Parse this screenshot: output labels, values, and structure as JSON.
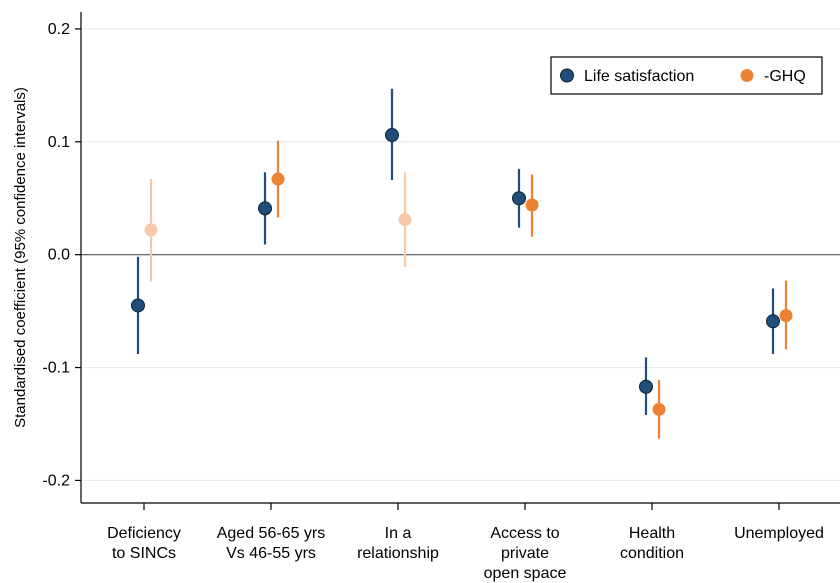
{
  "chart_data": {
    "type": "scatter",
    "subtype": "coefficient-plot",
    "title": "",
    "xlabel": "",
    "ylabel": "Standardised coefficient (95% confidence intervals)",
    "ylim": [
      -0.22,
      0.215
    ],
    "yticks": [
      0.2,
      0.1,
      0.0,
      -0.1,
      -0.2
    ],
    "ytick_labels": [
      "0.2",
      "0.1",
      "0.0",
      "-0.1",
      "-0.2"
    ],
    "grid": true,
    "zero_line": true,
    "legend_position": "top-right",
    "categories": [
      [
        "Deficiency",
        "to SINCs"
      ],
      [
        "Aged 56-65 yrs",
        "Vs 46-55 yrs"
      ],
      [
        "In a",
        "relationship"
      ],
      [
        "Access to",
        "private",
        "open space"
      ],
      [
        "Health",
        "condition"
      ],
      [
        "Unemployed"
      ]
    ],
    "series": [
      {
        "name": "Life satisfaction",
        "color": "#1f4e79",
        "faded_color": "#1f4e79",
        "estimates": [
          -0.045,
          0.041,
          0.106,
          0.05,
          -0.117,
          -0.059
        ],
        "ci_low": [
          -0.088,
          0.009,
          0.066,
          0.024,
          -0.142,
          -0.088
        ],
        "ci_high": [
          -0.002,
          0.073,
          0.147,
          0.076,
          -0.091,
          -0.03
        ],
        "significant": [
          true,
          true,
          true,
          true,
          true,
          true
        ]
      },
      {
        "name": "-GHQ",
        "color": "#ee8233",
        "faded_color": "#f6c9a8",
        "estimates": [
          0.022,
          0.067,
          0.031,
          0.044,
          -0.137,
          -0.054
        ],
        "ci_low": [
          -0.024,
          0.033,
          -0.011,
          0.016,
          -0.163,
          -0.084
        ],
        "ci_high": [
          0.067,
          0.101,
          0.073,
          0.071,
          -0.111,
          -0.023
        ],
        "significant": [
          false,
          true,
          false,
          true,
          true,
          true
        ]
      }
    ]
  }
}
